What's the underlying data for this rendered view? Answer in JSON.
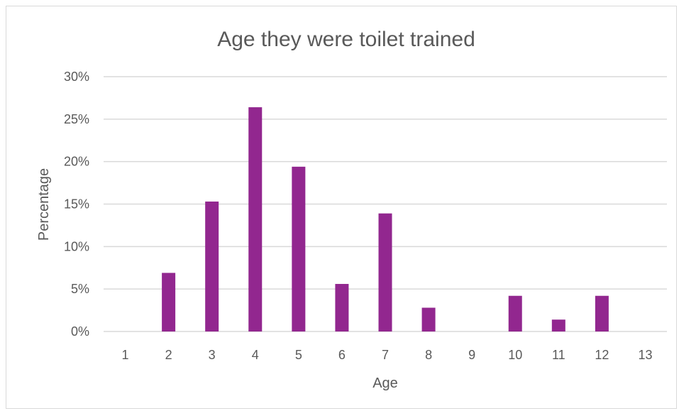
{
  "chart_data": {
    "type": "bar",
    "title": "Age they were toilet trained",
    "xlabel": "Age",
    "ylabel": "Percentage",
    "categories": [
      "1",
      "2",
      "3",
      "4",
      "5",
      "6",
      "7",
      "8",
      "9",
      "10",
      "11",
      "12",
      "13"
    ],
    "values": [
      0,
      6.9,
      15.3,
      26.4,
      19.4,
      5.6,
      13.9,
      2.8,
      0,
      4.2,
      1.4,
      4.2,
      0
    ],
    "ylim": [
      0,
      30
    ],
    "yticks": [
      "0%",
      "5%",
      "10%",
      "15%",
      "20%",
      "25%",
      "30%"
    ],
    "grid": true,
    "legend": "none",
    "colors": {
      "bar": "#92278f",
      "grid": "#d9d9d9",
      "text": "#595959"
    }
  }
}
